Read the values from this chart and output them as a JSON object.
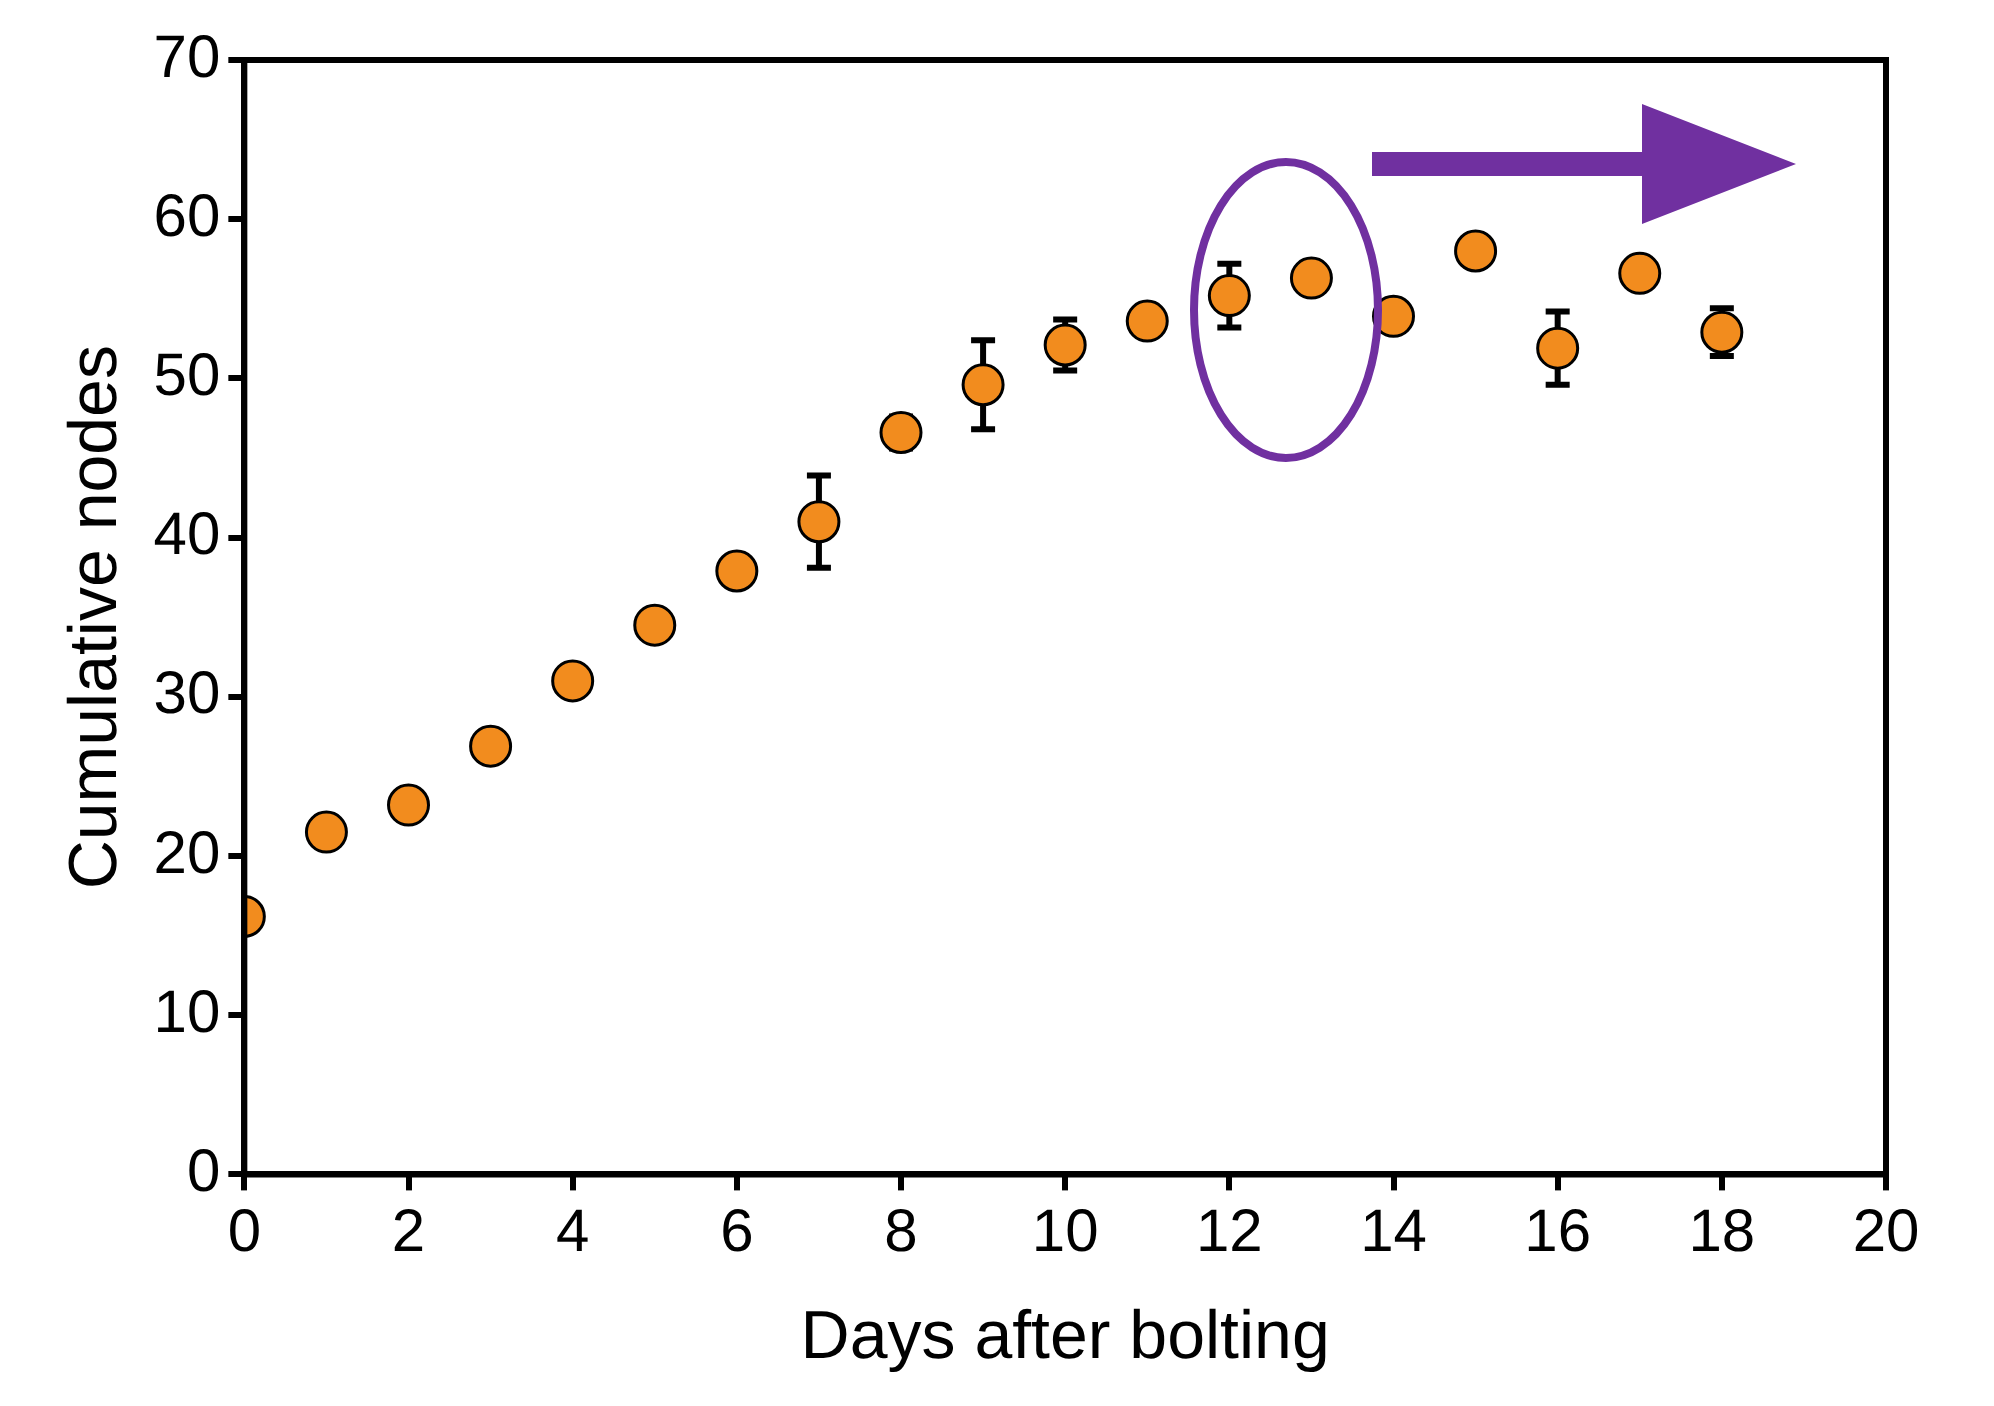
{
  "chart_data": {
    "type": "scatter",
    "xlabel": "Days after bolting",
    "ylabel": "Cumulative nodes",
    "marker": "circle",
    "xlim": [
      0,
      20
    ],
    "xticks": [
      0,
      2,
      4,
      6,
      8,
      10,
      12,
      14,
      16,
      18,
      20
    ],
    "ylim": [
      0,
      70
    ],
    "yticks": [
      0,
      10,
      20,
      30,
      40,
      50,
      60,
      70
    ],
    "series": [
      {
        "color": "#f28c1e",
        "x": [
          0,
          1,
          2,
          3,
          4,
          5,
          6,
          7,
          8,
          9,
          10,
          11,
          12,
          13,
          14,
          15,
          16,
          17,
          18
        ],
        "values": [
          16.2,
          21.5,
          23.2,
          26.9,
          31.0,
          34.5,
          37.9,
          41.0,
          46.6,
          49.6,
          52.1,
          53.6,
          55.2,
          56.3,
          53.9,
          58.0,
          51.9,
          56.6,
          52.9
        ],
        "errors": [
          null,
          null,
          null,
          null,
          null,
          null,
          null,
          2.9,
          1.0,
          2.8,
          1.6,
          null,
          2.0,
          null,
          null,
          null,
          2.3,
          null,
          1.5
        ]
      }
    ]
  }
}
